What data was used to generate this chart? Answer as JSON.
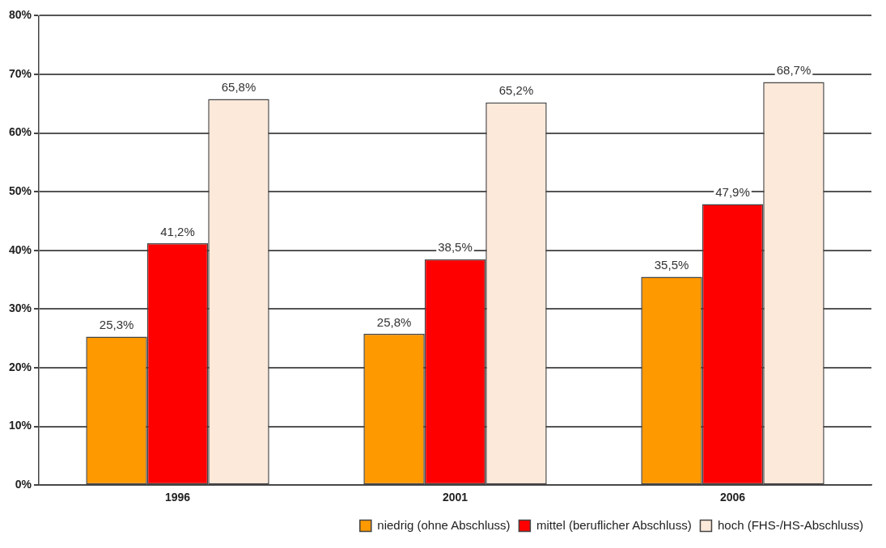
{
  "chart_data": {
    "type": "bar",
    "categories": [
      "1996",
      "2001",
      "2006"
    ],
    "series": [
      {
        "name": "niedrig (ohne Abschluss)",
        "color": "#ff9900",
        "values": [
          25.3,
          25.8,
          35.5
        ],
        "value_labels": [
          "25,3%",
          "25,8%",
          "35,5%"
        ]
      },
      {
        "name": "mittel (beruflicher Abschluss)",
        "color": "#ff0000",
        "values": [
          41.2,
          38.5,
          47.9
        ],
        "value_labels": [
          "41,2%",
          "38,5%",
          "47,9%"
        ]
      },
      {
        "name": "hoch (FHS-/HS-Abschluss)",
        "color": "#fde9d9",
        "values": [
          65.8,
          65.2,
          68.7
        ],
        "value_labels": [
          "65,8%",
          "65,2%",
          "68,7%"
        ]
      }
    ],
    "ylim": [
      0,
      80
    ],
    "yticks": [
      {
        "value": 0,
        "label": "0%"
      },
      {
        "value": 10,
        "label": "10%"
      },
      {
        "value": 20,
        "label": "20%"
      },
      {
        "value": 30,
        "label": "30%"
      },
      {
        "value": 40,
        "label": "40%"
      },
      {
        "value": 50,
        "label": "50%"
      },
      {
        "value": 60,
        "label": "60%"
      },
      {
        "value": 70,
        "label": "70%"
      },
      {
        "value": 80,
        "label": "80%"
      }
    ],
    "grid": "y",
    "legend": "bottom right"
  }
}
